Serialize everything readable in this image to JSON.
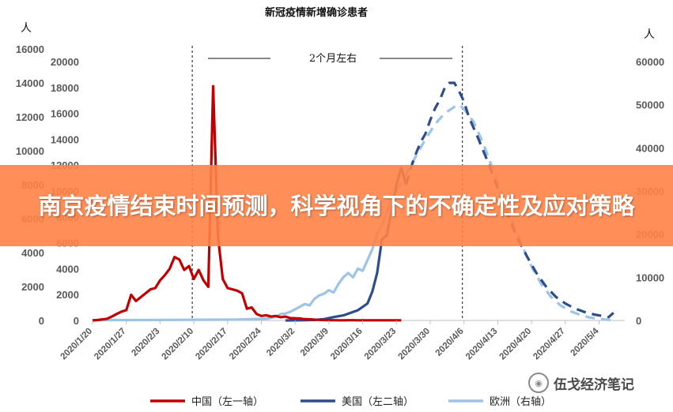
{
  "chart_data": {
    "type": "line",
    "title": "新冠疫情新增确诊患者",
    "left_outer_unit": "人",
    "right_unit": "人",
    "annotation": "2个月左右",
    "x_ticks": [
      "2020/1/20",
      "2020/1/27",
      "2020/2/3",
      "2020/2/10",
      "2020/2/17",
      "2020/2/24",
      "2020/3/2",
      "2020/3/9",
      "2020/3/16",
      "2020/3/23",
      "2020/3/30",
      "2020/4/6",
      "2020/4/13",
      "2020/4/20",
      "2020/4/27",
      "2020/5/4"
    ],
    "left_outer_axis": {
      "ticks": [
        0,
        2000,
        4000,
        6000,
        8000,
        10000,
        12000,
        14000,
        16000
      ],
      "range": [
        0,
        16000
      ]
    },
    "left_inner_axis": {
      "ticks": [
        0,
        2000,
        4000,
        6000,
        8000,
        10000,
        12000,
        14000,
        16000,
        18000,
        20000
      ],
      "range": [
        0,
        20000
      ]
    },
    "right_axis": {
      "ticks": [
        0,
        10000,
        20000,
        30000,
        40000,
        50000,
        60000
      ],
      "range": [
        0,
        60000
      ]
    },
    "vlines_day": [
      21,
      77
    ],
    "series": [
      {
        "name": "中国（左一轴）",
        "axis": "left_inner",
        "color": "#c00000",
        "dash": false,
        "points": [
          [
            0,
            0
          ],
          [
            1,
            30
          ],
          [
            2,
            80
          ],
          [
            3,
            130
          ],
          [
            4,
            300
          ],
          [
            5,
            500
          ],
          [
            6,
            680
          ],
          [
            7,
            790
          ],
          [
            8,
            1980
          ],
          [
            9,
            1500
          ],
          [
            10,
            1800
          ],
          [
            11,
            2100
          ],
          [
            12,
            2400
          ],
          [
            13,
            2500
          ],
          [
            14,
            3100
          ],
          [
            15,
            3500
          ],
          [
            16,
            4000
          ],
          [
            17,
            4900
          ],
          [
            18,
            4700
          ],
          [
            19,
            3900
          ],
          [
            20,
            4200
          ],
          [
            21,
            3200
          ],
          [
            22,
            3900
          ],
          [
            23,
            3100
          ],
          [
            24,
            2600
          ],
          [
            25,
            18100
          ],
          [
            26,
            6500
          ],
          [
            27,
            3200
          ],
          [
            28,
            2500
          ],
          [
            29,
            2400
          ],
          [
            30,
            2300
          ],
          [
            31,
            2100
          ],
          [
            32,
            900
          ],
          [
            33,
            1000
          ],
          [
            34,
            500
          ],
          [
            35,
            350
          ],
          [
            36,
            400
          ],
          [
            37,
            300
          ],
          [
            38,
            350
          ],
          [
            39,
            250
          ],
          [
            40,
            300
          ],
          [
            41,
            180
          ],
          [
            42,
            170
          ],
          [
            43,
            150
          ],
          [
            44,
            100
          ],
          [
            45,
            90
          ],
          [
            46,
            60
          ],
          [
            47,
            40
          ],
          [
            48,
            30
          ],
          [
            49,
            20
          ],
          [
            50,
            20
          ],
          [
            51,
            15
          ],
          [
            52,
            15
          ],
          [
            53,
            20
          ],
          [
            54,
            20
          ],
          [
            55,
            15
          ],
          [
            56,
            15
          ],
          [
            57,
            15
          ],
          [
            58,
            15
          ],
          [
            59,
            15
          ],
          [
            60,
            15
          ],
          [
            61,
            15
          ],
          [
            62,
            15
          ],
          [
            63,
            15
          ],
          [
            64,
            15
          ]
        ]
      },
      {
        "name": "美国（左二轴）",
        "axis": "left_outer",
        "color": "#2e4d8a",
        "dash_after": 65,
        "points": [
          [
            40,
            0
          ],
          [
            43,
            10
          ],
          [
            46,
            30
          ],
          [
            48,
            80
          ],
          [
            50,
            200
          ],
          [
            52,
            300
          ],
          [
            54,
            500
          ],
          [
            55,
            600
          ],
          [
            56,
            800
          ],
          [
            57,
            1000
          ],
          [
            58,
            1700
          ],
          [
            59,
            2800
          ],
          [
            60,
            4800
          ],
          [
            61,
            5000
          ],
          [
            62,
            6500
          ],
          [
            63,
            8000
          ],
          [
            64,
            9000
          ],
          [
            65,
            8000
          ],
          [
            66,
            9000
          ],
          [
            67,
            9800
          ],
          [
            68,
            10500
          ],
          [
            69,
            11000
          ],
          [
            70,
            11800
          ],
          [
            71,
            12500
          ],
          [
            72,
            13000
          ],
          [
            73,
            13700
          ],
          [
            74,
            14000
          ],
          [
            75,
            14000
          ],
          [
            76,
            13500
          ],
          [
            77,
            12900
          ],
          [
            78,
            12000
          ],
          [
            80,
            10700
          ],
          [
            82,
            9300
          ],
          [
            84,
            7800
          ],
          [
            86,
            6300
          ],
          [
            88,
            4900
          ],
          [
            90,
            3800
          ],
          [
            92,
            2800
          ],
          [
            94,
            2000
          ],
          [
            96,
            1400
          ],
          [
            98,
            1000
          ],
          [
            100,
            700
          ],
          [
            102,
            500
          ],
          [
            104,
            350
          ],
          [
            106,
            250
          ],
          [
            107,
            200
          ],
          [
            108,
            450
          ]
        ]
      },
      {
        "name": "欧洲（右轴）",
        "axis": "right",
        "color": "#9dc3e6",
        "dash_after": 63,
        "points": [
          [
            0,
            100
          ],
          [
            10,
            100
          ],
          [
            20,
            150
          ],
          [
            30,
            200
          ],
          [
            36,
            400
          ],
          [
            38,
            800
          ],
          [
            39,
            1500
          ],
          [
            40,
            1600
          ],
          [
            41,
            2000
          ],
          [
            42,
            2600
          ],
          [
            43,
            3200
          ],
          [
            44,
            3800
          ],
          [
            45,
            3500
          ],
          [
            46,
            5000
          ],
          [
            47,
            5800
          ],
          [
            48,
            6200
          ],
          [
            49,
            7000
          ],
          [
            50,
            6500
          ],
          [
            51,
            8500
          ],
          [
            52,
            10000
          ],
          [
            53,
            11000
          ],
          [
            54,
            10000
          ],
          [
            55,
            12000
          ],
          [
            56,
            11500
          ],
          [
            57,
            14000
          ],
          [
            58,
            16500
          ],
          [
            59,
            20000
          ],
          [
            60,
            22000
          ],
          [
            61,
            25000
          ],
          [
            62,
            28000
          ],
          [
            63,
            30000
          ],
          [
            65,
            34000
          ],
          [
            67,
            38000
          ],
          [
            69,
            42000
          ],
          [
            71,
            45500
          ],
          [
            73,
            48000
          ],
          [
            75,
            49500
          ],
          [
            76,
            50000
          ],
          [
            77,
            49000
          ],
          [
            79,
            46000
          ],
          [
            81,
            41000
          ],
          [
            83,
            35000
          ],
          [
            85,
            29000
          ],
          [
            87,
            23000
          ],
          [
            89,
            17500
          ],
          [
            91,
            12500
          ],
          [
            93,
            8500
          ],
          [
            95,
            5500
          ],
          [
            97,
            3500
          ],
          [
            99,
            2200
          ],
          [
            101,
            1300
          ],
          [
            103,
            700
          ],
          [
            105,
            350
          ],
          [
            107,
            150
          ],
          [
            108,
            80
          ]
        ]
      }
    ]
  },
  "legend": [
    {
      "label": "中国（左一轴）",
      "color": "#c00000"
    },
    {
      "label": "美国（左二轴）",
      "color": "#2e4d8a"
    },
    {
      "label": "欧洲（右轴）",
      "color": "#9dc3e6"
    }
  ],
  "banner": {
    "title": "南京疫情结束时间预测，科学视角下的不确定性及应对策略"
  },
  "watermark": {
    "text": "伍戈经济笔记"
  }
}
